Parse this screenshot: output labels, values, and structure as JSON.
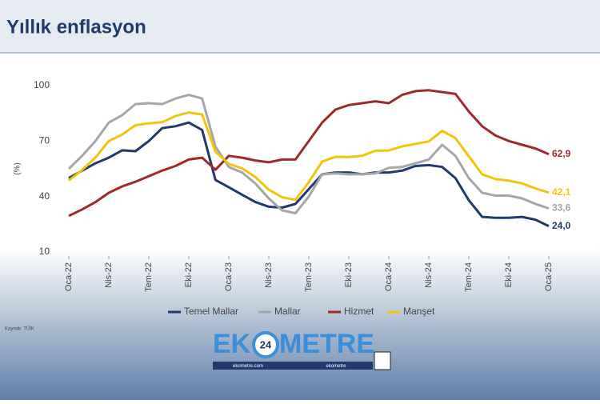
{
  "chart_data": {
    "type": "line",
    "title": "Yıllık enflasyon",
    "y_label": "(%)",
    "source": "Kaynak: TÜİK",
    "categories": [
      "Oca-22",
      null,
      null,
      "Nis-22",
      null,
      null,
      "Tem-22",
      null,
      null,
      "Eki-22",
      null,
      null,
      "Oca-23",
      null,
      null,
      "Nis-23",
      null,
      null,
      "Tem-23",
      null,
      null,
      "Eki-23",
      null,
      null,
      "Oca-24",
      null,
      null,
      "Nis-24",
      null,
      null,
      "Tem-24",
      null,
      null,
      "Eki-24",
      null,
      null,
      "Oca-25"
    ],
    "ylim": [
      10,
      100
    ],
    "yticks": [
      10,
      40,
      70,
      100
    ],
    "grid": false,
    "series": [
      {
        "name": "Temel Mallar",
        "color": "#1f3a6b",
        "values": [
          50,
          54,
          58,
          61,
          65,
          64.5,
          70,
          77,
          78,
          80,
          76,
          49,
          45,
          41,
          37,
          34.5,
          34,
          36,
          44,
          52,
          53,
          53,
          52,
          53,
          53,
          54,
          56.5,
          57,
          56,
          50,
          38,
          29,
          28.5,
          28.5,
          29,
          27.5,
          24.0
        ],
        "value_labels": [
          null,
          null,
          null,
          null,
          null,
          null,
          null,
          null,
          null,
          null,
          null,
          null,
          null,
          null,
          null,
          null,
          null,
          null,
          null,
          null,
          null,
          null,
          null,
          null,
          null,
          null,
          null,
          null,
          null,
          null,
          null,
          null,
          null,
          null,
          null,
          null,
          "24,0"
        ]
      },
      {
        "name": "Mallar",
        "color": "#a6a6a6",
        "values": [
          55,
          62,
          70,
          80,
          84,
          90,
          90.5,
          90,
          93,
          95,
          93,
          67,
          56,
          53,
          47,
          39,
          32.5,
          31,
          40,
          52,
          52.5,
          52,
          52,
          52.5,
          55.5,
          56,
          58,
          60,
          68,
          62,
          50,
          42,
          40.5,
          40.5,
          39,
          36,
          33.6
        ],
        "value_labels": [
          null,
          null,
          null,
          null,
          null,
          null,
          null,
          null,
          null,
          null,
          null,
          null,
          null,
          null,
          null,
          null,
          null,
          null,
          null,
          null,
          null,
          null,
          null,
          null,
          null,
          null,
          null,
          null,
          null,
          null,
          null,
          null,
          null,
          null,
          null,
          null,
          "33,6"
        ]
      },
      {
        "name": "Hizmet",
        "color": "#9e2a2b",
        "values": [
          29.5,
          33,
          37,
          42,
          45.5,
          48,
          51,
          54,
          56.5,
          60,
          61,
          54.5,
          62,
          61,
          59.5,
          58.5,
          60,
          60,
          70,
          80,
          87,
          89.5,
          90.5,
          91.5,
          90.5,
          95,
          97,
          97.5,
          96.5,
          95.5,
          86,
          78,
          73,
          70,
          68,
          66,
          62.9
        ],
        "value_labels": [
          null,
          null,
          null,
          null,
          null,
          null,
          null,
          null,
          null,
          null,
          null,
          null,
          null,
          null,
          null,
          null,
          null,
          null,
          null,
          null,
          null,
          null,
          null,
          null,
          null,
          null,
          null,
          null,
          null,
          null,
          null,
          null,
          null,
          null,
          null,
          null,
          "62,9"
        ]
      },
      {
        "name": "Manşet",
        "color": "#f2c40f",
        "values": [
          48.7,
          54.4,
          61.1,
          70,
          73.5,
          78.6,
          79.6,
          80.2,
          83.5,
          85.5,
          84.4,
          64.3,
          57.7,
          55.2,
          50.5,
          43.7,
          39.6,
          38.2,
          47.8,
          58.9,
          61.5,
          61.4,
          62,
          64.8,
          64.9,
          67.1,
          68.5,
          69.8,
          75.5,
          71.6,
          61.8,
          52,
          49.4,
          48.6,
          47.1,
          44.4,
          42.1
        ],
        "value_labels": [
          null,
          null,
          null,
          null,
          null,
          null,
          null,
          null,
          null,
          null,
          null,
          null,
          null,
          null,
          null,
          null,
          null,
          null,
          null,
          null,
          null,
          null,
          null,
          null,
          null,
          null,
          null,
          null,
          null,
          null,
          null,
          null,
          null,
          null,
          null,
          null,
          "42,1"
        ]
      }
    ]
  },
  "branding": {
    "name_start": "EK",
    "badge": "24",
    "name_end": "METRE",
    "url": "ekometre.com",
    "handle": "ekometre"
  }
}
